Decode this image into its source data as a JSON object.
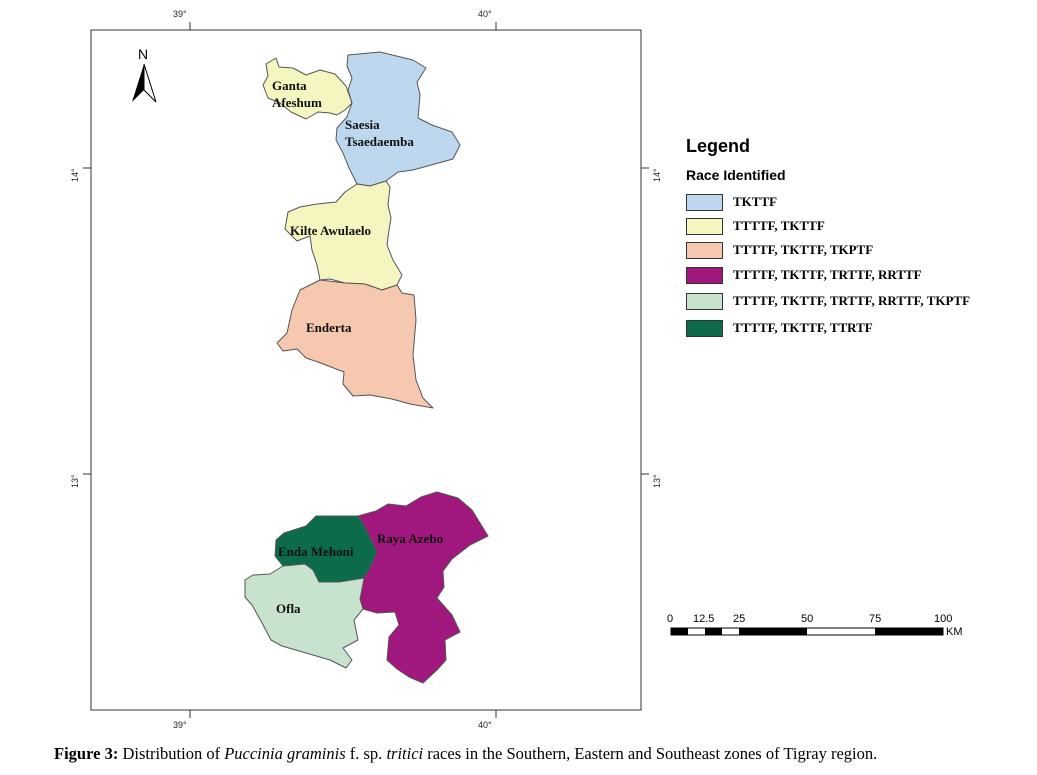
{
  "north_label": "N",
  "coordinates": {
    "top": [
      "39°",
      "40°"
    ],
    "bottom": [
      "39°",
      "40°"
    ],
    "left": [
      "14°",
      "13°"
    ],
    "right": [
      "14°",
      "13°"
    ]
  },
  "districts": [
    {
      "name": "Ganta Afeshum",
      "line1": "Ganta",
      "line2": "Afeshum",
      "color": "#f5f5c0"
    },
    {
      "name": "Saesia Tsaedaemba",
      "line1": "Saesia",
      "line2": "Tsaedaemba",
      "color": "#bdd7ee"
    },
    {
      "name": "Kilte Awulaelo",
      "line1": "Kilte Awulaelo",
      "line2": "",
      "color": "#f5f5c0"
    },
    {
      "name": "Enderta",
      "line1": "Enderta",
      "line2": "",
      "color": "#f6c8b0"
    },
    {
      "name": "Enda Mehoni",
      "line1": "Enda Mehoni",
      "line2": "",
      "color": "#0b6b4a"
    },
    {
      "name": "Raya Azebo",
      "line1": "Raya Azebo",
      "line2": "",
      "color": "#a0177e"
    },
    {
      "name": "Ofla",
      "line1": "Ofla",
      "line2": "",
      "color": "#c7e3cd"
    }
  ],
  "legend": {
    "title": "Legend",
    "subtitle": "Race Identified",
    "items": [
      {
        "label": "TKTTF",
        "color": "#bdd7ee"
      },
      {
        "label": "TTTTF, TKTTF",
        "color": "#f5f5c0"
      },
      {
        "label": "TTTTF, TKTTF, TKPTF",
        "color": "#f6c8b0"
      },
      {
        "label": "TTTTF, TKTTF, TRTTF, RRTTF",
        "color": "#a0177e"
      },
      {
        "label": "TTTTF, TKTTF, TRTTF, RRTTF, TKPTF",
        "color": "#c7e3cd"
      },
      {
        "label": "TTTTF, TKTTF, TTRTF",
        "color": "#0b6b4a"
      }
    ]
  },
  "scale_bar": {
    "ticks": [
      "0",
      "12.5",
      "25",
      "50",
      "75",
      "100"
    ],
    "unit": "KM"
  },
  "caption": {
    "label": "Figure 3:",
    "text_before": " Distribution of ",
    "species": "Puccinia graminis",
    "text_mid": " f. sp. ",
    "forma": "tritici",
    "text_after": " races in the Southern, Eastern and Southeast zones of Tigray region."
  }
}
